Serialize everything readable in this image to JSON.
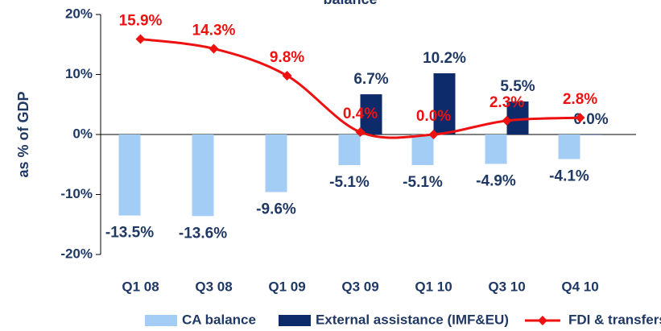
{
  "chart_data": {
    "type": "bar-line",
    "title": "balance",
    "y_label": "as % of GDP",
    "categories": [
      "Q1 08",
      "Q3 08",
      "Q1 09",
      "Q3 09",
      "Q1 10",
      "Q3 10",
      "Q4 10"
    ],
    "series": [
      {
        "name": "CA balance",
        "color": "#a3cdf5",
        "kind": "bar",
        "values": [
          -13.5,
          -13.6,
          -9.6,
          -5.1,
          -5.1,
          -4.9,
          -4.1
        ],
        "value_labels": [
          "-13.5%",
          "-13.6%",
          "-9.6%",
          "-5.1%",
          "-5.1%",
          "-4.9%",
          "-4.1%"
        ]
      },
      {
        "name": "External assistance (IMF&EU)",
        "color": "#0d2a6b",
        "kind": "bar",
        "values": [
          null,
          null,
          null,
          6.7,
          10.2,
          5.5,
          0.0
        ],
        "value_labels": [
          null,
          null,
          null,
          "6.7%",
          "10.2%",
          "5.5%",
          "0.0%"
        ]
      },
      {
        "name": "FDI & transfers",
        "color": "#ee1111",
        "kind": "line",
        "values": [
          15.9,
          14.3,
          9.8,
          0.4,
          0.0,
          2.3,
          2.8
        ],
        "value_labels": [
          "15.9%",
          "14.3%",
          "9.8%",
          "0.4%",
          "0.0%",
          "2.3%",
          "2.8%"
        ]
      }
    ],
    "ylim": [
      -20,
      20
    ],
    "yticks": [
      {
        "value": -20,
        "label": "-20%"
      },
      {
        "value": -10,
        "label": "-10%"
      },
      {
        "value": 0,
        "label": "0%"
      },
      {
        "value": 10,
        "label": "10%"
      },
      {
        "value": 20,
        "label": "20%"
      }
    ],
    "legend": "bottom"
  }
}
